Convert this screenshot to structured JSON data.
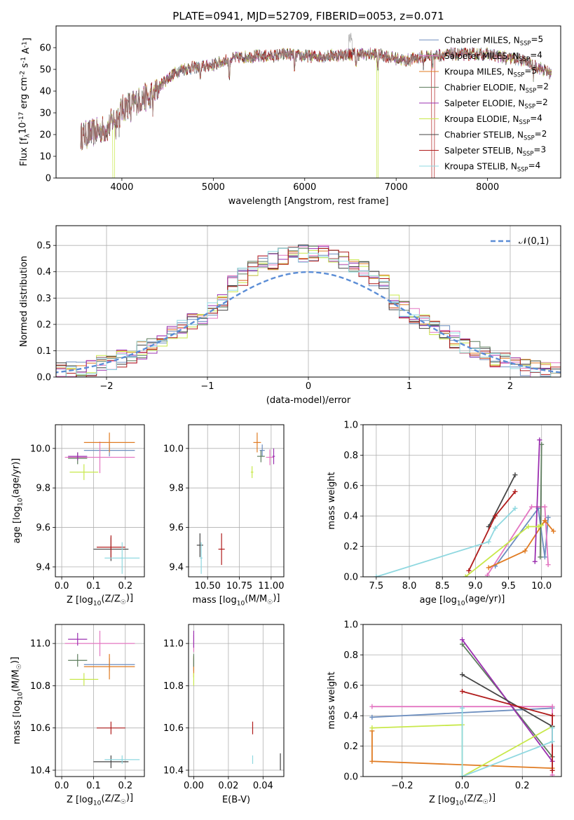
{
  "figure": {
    "title": "PLATE=0941, MJD=52709, FIBERID=0053, z=0.071"
  },
  "models": [
    {
      "label": "Chabrier MILES, N$_{SSP}$=5",
      "color": "#6c8ebf"
    },
    {
      "label": "Salpeter MILES, N$_{SSP}$=4",
      "color": "#e377c2"
    },
    {
      "label": "Kroupa MILES, N$_{SSP}$=5",
      "color": "#e07b22"
    },
    {
      "label": "Chabrier ELODIE, N$_{SSP}$=2",
      "color": "#5e7d5e"
    },
    {
      "label": "Salpeter ELODIE, N$_{SSP}$=2",
      "color": "#9b30b0"
    },
    {
      "label": "Kroupa ELODIE, N$_{SSP}$=4",
      "color": "#c8e84a"
    },
    {
      "label": "Chabrier STELIB, N$_{SSP}$=2",
      "color": "#444444"
    },
    {
      "label": "Salpeter STELIB, N$_{SSP}$=3",
      "color": "#b01c1c"
    },
    {
      "label": "Kroupa STELIB, N$_{SSP}$=4",
      "color": "#8fd8e0"
    }
  ],
  "chart_data": [
    {
      "id": "spectrum",
      "type": "line",
      "xlabel": "wavelength [Angstrom, rest frame]",
      "ylabel": "Flux [f$_λ$10$^{-17}$ erg cm$^{-2}$ s$^{-1}$ A$^{-1}$]",
      "xlim": [
        3280,
        8800
      ],
      "ylim": [
        0,
        70
      ],
      "xticks": [
        4000,
        5000,
        6000,
        7000,
        8000
      ],
      "yticks": [
        0,
        10,
        20,
        30,
        40,
        50,
        60
      ],
      "grid": false,
      "legend": "upper right",
      "continuum": [
        [
          3550,
          19
        ],
        [
          3700,
          21
        ],
        [
          3850,
          23
        ],
        [
          3950,
          30
        ],
        [
          4050,
          33
        ],
        [
          4200,
          36
        ],
        [
          4350,
          39
        ],
        [
          4500,
          46
        ],
        [
          4650,
          50
        ],
        [
          4800,
          51
        ],
        [
          5000,
          52
        ],
        [
          5200,
          55
        ],
        [
          5400,
          56
        ],
        [
          5600,
          56
        ],
        [
          5800,
          57
        ],
        [
          6000,
          56
        ],
        [
          6200,
          56
        ],
        [
          6500,
          57
        ],
        [
          6800,
          57
        ],
        [
          7100,
          54
        ],
        [
          7300,
          56
        ],
        [
          7600,
          57
        ],
        [
          8000,
          57
        ],
        [
          8400,
          54
        ],
        [
          8700,
          48
        ]
      ],
      "dips": [
        [
          3934,
          6
        ],
        [
          3969,
          6
        ],
        [
          4101,
          6
        ],
        [
          4300,
          6
        ],
        [
          4340,
          6
        ],
        [
          4861,
          5
        ],
        [
          5175,
          9
        ],
        [
          5890,
          7
        ],
        [
          6563,
          5
        ],
        [
          6800,
          6
        ],
        [
          7300,
          4
        ],
        [
          7400,
          4
        ],
        [
          8200,
          4
        ],
        [
          8500,
          5
        ]
      ],
      "model_drops": [
        {
          "series": "Kroupa ELODIE, N$_{SSP}$=4",
          "range": [
            3900,
            3920
          ]
        },
        {
          "series": "Kroupa ELODIE, N$_{SSP}$=4",
          "range": [
            6790,
            6805
          ]
        },
        {
          "series": "Salpeter STELIB, N$_{SSP}$=3",
          "range": [
            7390,
            7420
          ]
        }
      ]
    },
    {
      "id": "residual_hist",
      "type": "histogram",
      "xlabel": "(data-model)/error",
      "ylabel": "Normed distribution",
      "xlim": [
        -2.5,
        2.5
      ],
      "ylim": [
        0,
        0.575
      ],
      "xticks": [
        -2,
        -1,
        0,
        1,
        2
      ],
      "yticks": [
        0.0,
        0.1,
        0.2,
        0.3,
        0.4,
        0.5
      ],
      "grid": true,
      "legend": "upper right",
      "reference_label": "$\\mathcal{N}(0,1)$",
      "bin_width": 0.1
    },
    {
      "id": "age_vs_Z",
      "type": "errorbar",
      "xlabel": "Z [log$_{10}$(Z/Z$_\\odot$)]",
      "ylabel": "age  [log$_{10}$(age/yr)]",
      "xlim": [
        -0.02,
        0.26
      ],
      "ylim": [
        9.35,
        10.12
      ],
      "xticks": [
        0.0,
        0.1,
        0.2
      ],
      "yticks": [
        9.4,
        9.6,
        9.8,
        10.0
      ],
      "grid": true,
      "points": [
        {
          "series": 0,
          "x": 0.15,
          "y": 9.99,
          "xerr": 0.08,
          "yerr": 0.03
        },
        {
          "series": 1,
          "x": 0.12,
          "y": 9.955,
          "xerr": 0.11,
          "yerr": 0.08
        },
        {
          "series": 2,
          "x": 0.15,
          "y": 10.03,
          "xerr": 0.08,
          "yerr": 0.05
        },
        {
          "series": 3,
          "x": 0.05,
          "y": 9.95,
          "xerr": 0.03,
          "yerr": 0.03
        },
        {
          "series": 4,
          "x": 0.05,
          "y": 9.96,
          "xerr": 0.03,
          "yerr": 0.02
        },
        {
          "series": 5,
          "x": 0.07,
          "y": 9.88,
          "xerr": 0.045,
          "yerr": 0.04
        },
        {
          "series": 6,
          "x": 0.155,
          "y": 9.49,
          "xerr": 0.055,
          "yerr": 0.06
        },
        {
          "series": 7,
          "x": 0.155,
          "y": 9.5,
          "xerr": 0.045,
          "yerr": 0.06
        },
        {
          "series": 8,
          "x": 0.19,
          "y": 9.445,
          "xerr": 0.055,
          "yerr": 0.08
        }
      ]
    },
    {
      "id": "age_vs_mass",
      "type": "errorbar",
      "xlabel": "mass [log$_{10}$(M/M$_\\odot$)]",
      "ylabel": "",
      "xlim": [
        10.35,
        11.1
      ],
      "ylim": [
        9.35,
        10.12
      ],
      "xticks": [
        10.5,
        10.75,
        11.0
      ],
      "yticks": [
        9.4,
        9.6,
        9.8,
        10.0
      ],
      "grid": true,
      "points": [
        {
          "series": 0,
          "x": 10.93,
          "y": 9.99,
          "xerr": 0.02,
          "yerr": 0.03
        },
        {
          "series": 1,
          "x": 10.99,
          "y": 9.955,
          "xerr": 0.03,
          "yerr": 0.04
        },
        {
          "series": 2,
          "x": 10.89,
          "y": 10.03,
          "xerr": 0.03,
          "yerr": 0.05
        },
        {
          "series": 3,
          "x": 10.92,
          "y": 9.96,
          "xerr": 0.03,
          "yerr": 0.03
        },
        {
          "series": 4,
          "x": 11.02,
          "y": 9.96,
          "xerr": 0.01,
          "yerr": 0.04
        },
        {
          "series": 5,
          "x": 10.85,
          "y": 9.88,
          "xerr": 0.01,
          "yerr": 0.03
        },
        {
          "series": 6,
          "x": 10.44,
          "y": 9.51,
          "xerr": 0.025,
          "yerr": 0.06
        },
        {
          "series": 7,
          "x": 10.61,
          "y": 9.49,
          "xerr": 0.025,
          "yerr": 0.08
        },
        {
          "series": 8,
          "x": 10.45,
          "y": 9.445,
          "xerr": 0.01,
          "yerr": 0.08
        }
      ]
    },
    {
      "id": "weight_vs_age",
      "type": "line",
      "xlabel": "age  [log$_{10}$(age/yr)]",
      "ylabel": "mass weight",
      "xlim": [
        7.3,
        10.3
      ],
      "ylim": [
        0,
        1
      ],
      "xticks": [
        7.5,
        8.0,
        8.5,
        9.0,
        9.5,
        10.0
      ],
      "yticks": [
        0.0,
        0.2,
        0.4,
        0.6,
        0.8,
        1.0
      ],
      "grid": true,
      "series": [
        {
          "series": 0,
          "points": [
            [
              9.3,
              0.07
            ],
            [
              9.95,
              0.45
            ],
            [
              10.05,
              0.13
            ],
            [
              10.1,
              0.39
            ]
          ]
        },
        {
          "series": 1,
          "points": [
            [
              9.18,
              0.01
            ],
            [
              9.85,
              0.46
            ],
            [
              10.05,
              0.46
            ],
            [
              10.1,
              0.08
            ]
          ]
        },
        {
          "series": 2,
          "points": [
            [
              9.2,
              0.06
            ],
            [
              9.75,
              0.17
            ],
            [
              10.05,
              0.37
            ],
            [
              10.18,
              0.3
            ]
          ]
        },
        {
          "series": 3,
          "points": [
            [
              9.98,
              0.13
            ],
            [
              10.0,
              0.87
            ]
          ]
        },
        {
          "series": 4,
          "points": [
            [
              9.9,
              0.1
            ],
            [
              9.97,
              0.9
            ]
          ]
        },
        {
          "series": 5,
          "points": [
            [
              8.85,
              0.0
            ],
            [
              9.8,
              0.33
            ],
            [
              9.95,
              0.33
            ],
            [
              10.0,
              0.34
            ]
          ]
        },
        {
          "series": 6,
          "points": [
            [
              9.2,
              0.33
            ],
            [
              9.6,
              0.67
            ]
          ]
        },
        {
          "series": 7,
          "points": [
            [
              8.9,
              0.04
            ],
            [
              9.3,
              0.4
            ],
            [
              9.6,
              0.56
            ]
          ]
        },
        {
          "series": 8,
          "points": [
            [
              7.5,
              0.0
            ],
            [
              9.2,
              0.23
            ],
            [
              9.3,
              0.32
            ],
            [
              9.6,
              0.45
            ]
          ]
        }
      ]
    },
    {
      "id": "mass_vs_Z",
      "type": "errorbar",
      "xlabel": "Z [log$_{10}$(Z/Z$_\\odot$)]",
      "ylabel": "mass [log$_{10}$(M/M$_\\odot$)]",
      "xlim": [
        -0.02,
        0.26
      ],
      "ylim": [
        10.37,
        11.09
      ],
      "xticks": [
        0.0,
        0.1,
        0.2
      ],
      "yticks": [
        10.4,
        10.6,
        10.8,
        11.0
      ],
      "grid": true,
      "points": [
        {
          "series": 0,
          "x": 0.15,
          "y": 10.9,
          "xerr": 0.08,
          "yerr": 0.03
        },
        {
          "series": 1,
          "x": 0.12,
          "y": 11.0,
          "xerr": 0.11,
          "yerr": 0.06
        },
        {
          "series": 2,
          "x": 0.15,
          "y": 10.89,
          "xerr": 0.08,
          "yerr": 0.06
        },
        {
          "series": 3,
          "x": 0.05,
          "y": 10.92,
          "xerr": 0.03,
          "yerr": 0.03
        },
        {
          "series": 4,
          "x": 0.05,
          "y": 11.02,
          "xerr": 0.03,
          "yerr": 0.03
        },
        {
          "series": 5,
          "x": 0.07,
          "y": 10.83,
          "xerr": 0.045,
          "yerr": 0.03
        },
        {
          "series": 6,
          "x": 0.155,
          "y": 10.44,
          "xerr": 0.055,
          "yerr": 0.03
        },
        {
          "series": 7,
          "x": 0.155,
          "y": 10.6,
          "xerr": 0.045,
          "yerr": 0.03
        },
        {
          "series": 8,
          "x": 0.19,
          "y": 10.45,
          "xerr": 0.055,
          "yerr": 0.02
        }
      ]
    },
    {
      "id": "mass_vs_ebv",
      "type": "errorbar",
      "xlabel": "E(B-V)",
      "ylabel": "",
      "xlim": [
        -0.003,
        0.052
      ],
      "ylim": [
        10.37,
        11.09
      ],
      "xticks": [
        0.0,
        0.02,
        0.04
      ],
      "yticks": [
        10.4,
        10.6,
        10.8,
        11.0
      ],
      "grid": true,
      "points": [
        {
          "series": 0,
          "x": 0.0,
          "y": 10.9,
          "xerr": 0,
          "yerr": 0.03
        },
        {
          "series": 1,
          "x": 0.0,
          "y": 11.0,
          "xerr": 0,
          "yerr": 0.04
        },
        {
          "series": 2,
          "x": 0.0,
          "y": 10.89,
          "xerr": 0,
          "yerr": 0.05
        },
        {
          "series": 3,
          "x": 0.0,
          "y": 10.92,
          "xerr": 0,
          "yerr": 0.03
        },
        {
          "series": 4,
          "x": 0.0,
          "y": 11.02,
          "xerr": 0,
          "yerr": 0.04
        },
        {
          "series": 5,
          "x": 0.0,
          "y": 10.83,
          "xerr": 0,
          "yerr": 0.03
        },
        {
          "series": 6,
          "x": 0.05,
          "y": 10.44,
          "xerr": 0,
          "yerr": 0.04
        },
        {
          "series": 7,
          "x": 0.034,
          "y": 10.6,
          "xerr": 0,
          "yerr": 0.03
        },
        {
          "series": 8,
          "x": 0.034,
          "y": 10.45,
          "xerr": 0,
          "yerr": 0.02
        }
      ]
    },
    {
      "id": "weight_vs_Z",
      "type": "line",
      "xlabel": "Z [log$_{10}$(Z/Z$_\\odot$)]",
      "ylabel": "mass weight",
      "xlim": [
        -0.33,
        0.33
      ],
      "ylim": [
        0,
        1
      ],
      "xticks": [
        -0.2,
        0.0,
        0.2
      ],
      "yticks": [
        0.0,
        0.2,
        0.4,
        0.6,
        0.8,
        1.0
      ],
      "grid": true,
      "series": [
        {
          "series": 0,
          "points": [
            [
              -0.3,
              0.39
            ],
            [
              0.3,
              0.45
            ]
          ]
        },
        {
          "series": 1,
          "points": [
            [
              -0.3,
              0.46
            ],
            [
              0.3,
              0.46
            ],
            [
              0.3,
              0.01
            ]
          ]
        },
        {
          "series": 2,
          "points": [
            [
              -0.3,
              0.3
            ],
            [
              -0.3,
              0.1
            ],
            [
              0.3,
              0.055
            ]
          ]
        },
        {
          "series": 3,
          "points": [
            [
              0.0,
              0.87
            ],
            [
              0.3,
              0.13
            ]
          ]
        },
        {
          "series": 4,
          "points": [
            [
              0.0,
              0.9
            ],
            [
              0.3,
              0.1
            ]
          ]
        },
        {
          "series": 5,
          "points": [
            [
              -0.3,
              0.32
            ],
            [
              0.0,
              0.34
            ],
            [
              0.0,
              0.0
            ],
            [
              0.3,
              0.33
            ]
          ]
        },
        {
          "series": 6,
          "points": [
            [
              0.0,
              0.67
            ],
            [
              0.3,
              0.33
            ]
          ]
        },
        {
          "series": 7,
          "points": [
            [
              0.0,
              0.56
            ],
            [
              0.3,
              0.4
            ],
            [
              0.3,
              0.04
            ]
          ]
        },
        {
          "series": 8,
          "points": [
            [
              0.0,
              0.45
            ],
            [
              0.0,
              0.0
            ],
            [
              0.3,
              0.23
            ],
            [
              0.3,
              0.32
            ]
          ]
        }
      ]
    }
  ]
}
